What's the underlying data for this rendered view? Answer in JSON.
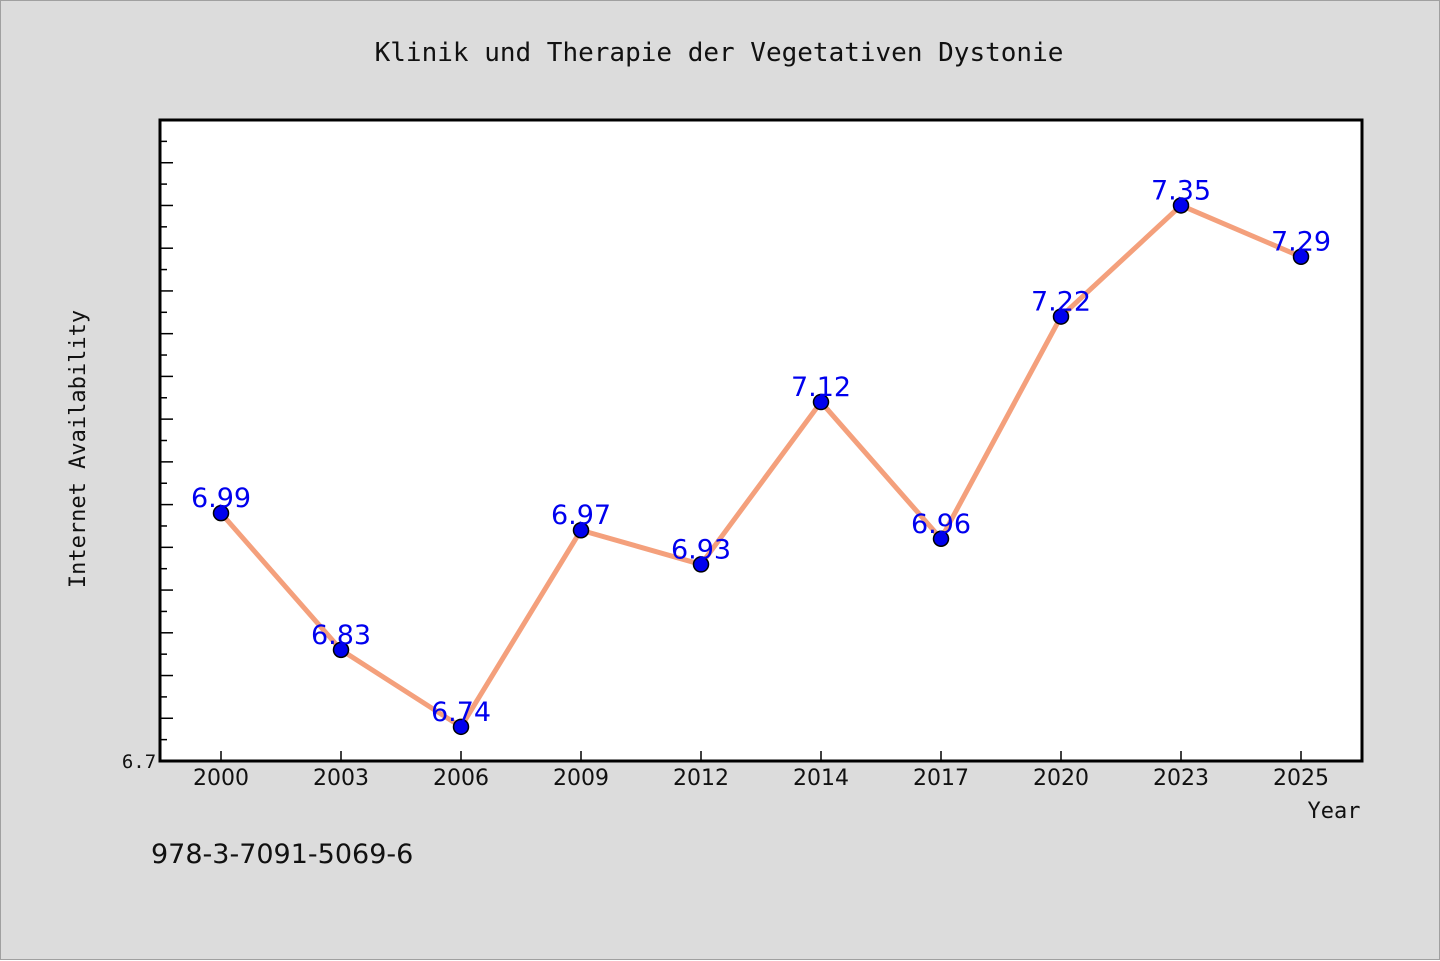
{
  "chart_data": {
    "type": "line",
    "title": "Klinik und Therapie der Vegetativen Dystonie",
    "xlabel": "Year",
    "ylabel": "Internet Availability",
    "categories": [
      "2000",
      "2003",
      "2006",
      "2009",
      "2012",
      "2014",
      "2017",
      "2020",
      "2023",
      "2025"
    ],
    "series": [
      {
        "values": [
          6.99,
          6.83,
          6.74,
          6.97,
          6.93,
          7.12,
          6.96,
          7.22,
          7.35,
          7.29
        ],
        "labels": [
          "6.99",
          "6.83",
          "6.74",
          "6.97",
          "6.93",
          "7.12",
          "6.96",
          "7.22",
          "7.35",
          "7.29"
        ]
      }
    ],
    "ylim": [
      6.7,
      7.45
    ],
    "y_tick_label": "6.7",
    "grid": false,
    "legend": "none",
    "line_color": "#f4a07c",
    "marker_color": "#0000ee",
    "label_color": "#0000ee"
  },
  "footer": {
    "isbn": "978-3-7091-5069-6"
  }
}
